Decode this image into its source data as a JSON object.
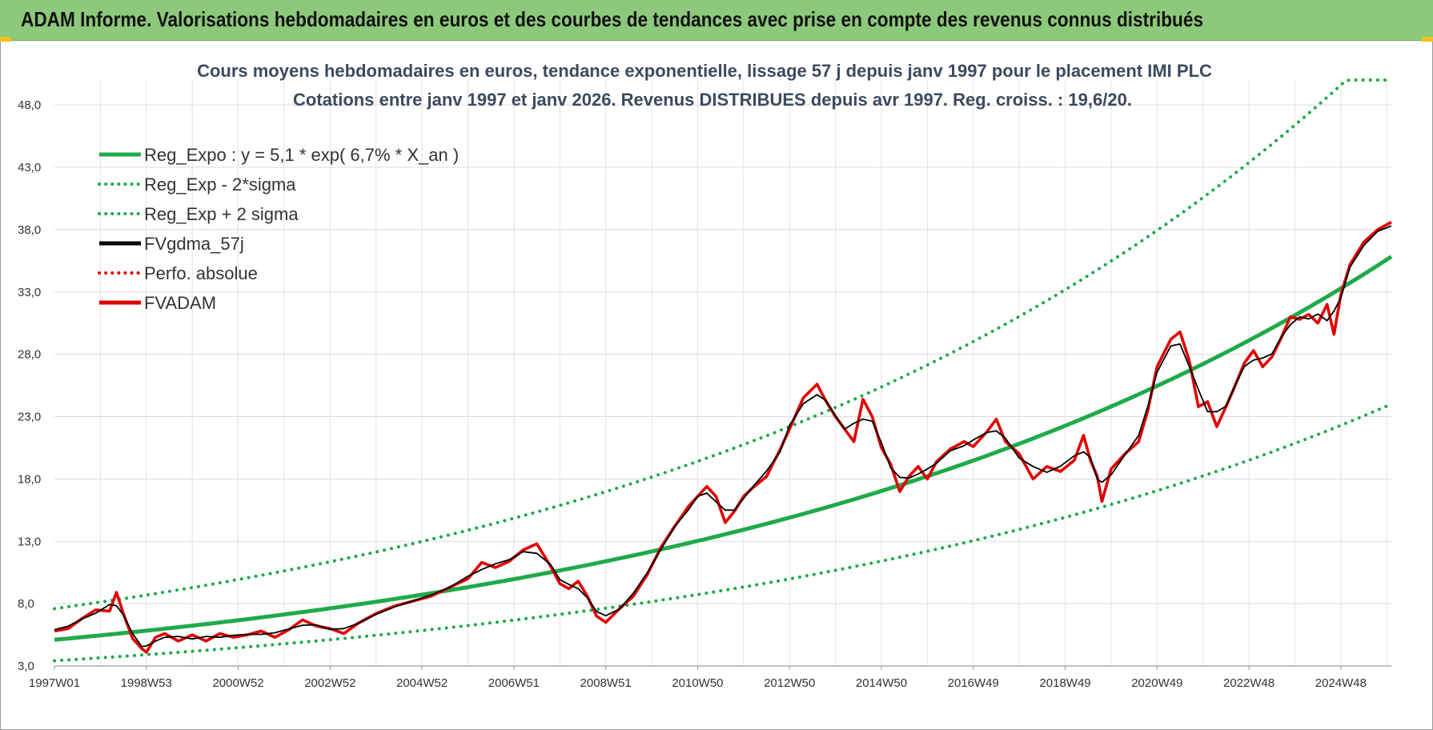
{
  "banner": {
    "title": "ADAM Informe. Valorisations hebdomadaires en euros et des courbes de tendances avec prise en compte des revenus connus distribués"
  },
  "chart_data": {
    "type": "line",
    "title_line1": "Cours moyens hebdomadaires en euros, tendance exponentielle, lissage 57 j depuis janv 1997  pour le placement IMI PLC",
    "title_line2": "Cotations entre janv 1997 et janv 2026. Revenus DISTRIBUES depuis avr 1997.  Reg. croiss. : 19,6/20.",
    "ylim": [
      3,
      50
    ],
    "yticks": [
      "3,0",
      "8,0",
      "13,0",
      "18,0",
      "23,0",
      "28,0",
      "33,0",
      "38,0",
      "43,0",
      "48,0"
    ],
    "ytick_values": [
      3,
      8,
      13,
      18,
      23,
      28,
      33,
      38,
      43,
      48
    ],
    "xticks": [
      "1997W01",
      "1998W53",
      "2000W52",
      "2002W52",
      "2004W52",
      "2006W51",
      "2008W51",
      "2010W50",
      "2012W50",
      "2014W50",
      "2016W49",
      "2018W49",
      "2020W49",
      "2022W48",
      "2024W48"
    ],
    "xtick_years": [
      1997.0,
      1999.0,
      2001.0,
      2003.0,
      2005.0,
      2007.0,
      2009.0,
      2011.0,
      2013.0,
      2015.0,
      2017.0,
      2019.0,
      2021.0,
      2023.0,
      2025.0
    ],
    "x_range_years": [
      1997.0,
      2026.1
    ],
    "grid": true,
    "legend_position": "top-left",
    "series": [
      {
        "name": "Reg_Expo : y = 5,1 * exp( 6,7% *  X_an )",
        "color": "#1faa4a",
        "style": "solid",
        "formula": {
          "a": 5.1,
          "r": 0.067,
          "factor": 1.0
        }
      },
      {
        "name": "Reg_Exp - 2*sigma",
        "color": "#1faa4a",
        "style": "dotted",
        "formula": {
          "a": 5.1,
          "r": 0.067,
          "factor": 0.67
        }
      },
      {
        "name": "Reg_Exp + 2 sigma",
        "color": "#1faa4a",
        "style": "dotted",
        "formula": {
          "a": 5.1,
          "r": 0.067,
          "factor": 1.49
        }
      },
      {
        "name": "FVgdma_57j",
        "color": "#000000",
        "style": "solid"
      },
      {
        "name": "Perfo. absolue",
        "color": "#e00000",
        "style": "dotted"
      },
      {
        "name": "FVADAM",
        "color": "#e00000",
        "style": "solid",
        "points": [
          [
            1997.0,
            5.8
          ],
          [
            1997.3,
            6.0
          ],
          [
            1997.6,
            6.8
          ],
          [
            1997.9,
            7.5
          ],
          [
            1998.2,
            7.4
          ],
          [
            1998.35,
            8.9
          ],
          [
            1998.5,
            7.2
          ],
          [
            1998.7,
            5.2
          ],
          [
            1998.9,
            4.4
          ],
          [
            1999.0,
            4.1
          ],
          [
            1999.2,
            5.3
          ],
          [
            1999.4,
            5.6
          ],
          [
            1999.7,
            5.0
          ],
          [
            2000.0,
            5.5
          ],
          [
            2000.3,
            5.0
          ],
          [
            2000.6,
            5.6
          ],
          [
            2000.9,
            5.3
          ],
          [
            2001.2,
            5.5
          ],
          [
            2001.5,
            5.8
          ],
          [
            2001.8,
            5.3
          ],
          [
            2002.1,
            5.9
          ],
          [
            2002.4,
            6.7
          ],
          [
            2002.7,
            6.2
          ],
          [
            2003.0,
            6.0
          ],
          [
            2003.3,
            5.6
          ],
          [
            2003.6,
            6.4
          ],
          [
            2004.0,
            7.2
          ],
          [
            2004.4,
            7.8
          ],
          [
            2004.8,
            8.2
          ],
          [
            2005.2,
            8.6
          ],
          [
            2005.6,
            9.3
          ],
          [
            2006.0,
            10.0
          ],
          [
            2006.3,
            11.3
          ],
          [
            2006.6,
            10.9
          ],
          [
            2006.9,
            11.4
          ],
          [
            2007.2,
            12.3
          ],
          [
            2007.5,
            12.8
          ],
          [
            2007.8,
            11.0
          ],
          [
            2008.0,
            9.6
          ],
          [
            2008.2,
            9.2
          ],
          [
            2008.4,
            9.8
          ],
          [
            2008.6,
            8.6
          ],
          [
            2008.8,
            7.0
          ],
          [
            2009.0,
            6.5
          ],
          [
            2009.3,
            7.6
          ],
          [
            2009.6,
            8.6
          ],
          [
            2009.9,
            10.3
          ],
          [
            2010.2,
            12.5
          ],
          [
            2010.5,
            14.2
          ],
          [
            2010.8,
            15.8
          ],
          [
            2011.0,
            16.6
          ],
          [
            2011.2,
            17.4
          ],
          [
            2011.4,
            16.6
          ],
          [
            2011.6,
            14.5
          ],
          [
            2011.8,
            15.4
          ],
          [
            2012.0,
            16.6
          ],
          [
            2012.2,
            17.3
          ],
          [
            2012.5,
            18.2
          ],
          [
            2012.8,
            20.4
          ],
          [
            2013.0,
            22.0
          ],
          [
            2013.3,
            24.5
          ],
          [
            2013.6,
            25.6
          ],
          [
            2013.8,
            24.2
          ],
          [
            2014.0,
            23.0
          ],
          [
            2014.2,
            22.0
          ],
          [
            2014.4,
            21.0
          ],
          [
            2014.6,
            24.4
          ],
          [
            2014.8,
            23.0
          ],
          [
            2015.0,
            20.5
          ],
          [
            2015.2,
            19.2
          ],
          [
            2015.4,
            17.0
          ],
          [
            2015.6,
            18.2
          ],
          [
            2015.8,
            19.0
          ],
          [
            2016.0,
            18.0
          ],
          [
            2016.2,
            19.4
          ],
          [
            2016.5,
            20.4
          ],
          [
            2016.8,
            21.0
          ],
          [
            2017.0,
            20.6
          ],
          [
            2017.3,
            21.8
          ],
          [
            2017.5,
            22.8
          ],
          [
            2017.7,
            21.0
          ],
          [
            2018.0,
            20.0
          ],
          [
            2018.3,
            18.0
          ],
          [
            2018.6,
            19.0
          ],
          [
            2018.9,
            18.6
          ],
          [
            2019.2,
            19.5
          ],
          [
            2019.4,
            21.5
          ],
          [
            2019.55,
            19.5
          ],
          [
            2019.7,
            18.2
          ],
          [
            2019.8,
            16.2
          ],
          [
            2020.0,
            18.8
          ],
          [
            2020.3,
            20.0
          ],
          [
            2020.6,
            21.0
          ],
          [
            2020.8,
            23.5
          ],
          [
            2021.0,
            27.0
          ],
          [
            2021.3,
            29.2
          ],
          [
            2021.5,
            29.8
          ],
          [
            2021.7,
            27.5
          ],
          [
            2021.9,
            23.8
          ],
          [
            2022.1,
            24.2
          ],
          [
            2022.3,
            22.2
          ],
          [
            2022.5,
            23.8
          ],
          [
            2022.7,
            25.5
          ],
          [
            2022.9,
            27.3
          ],
          [
            2023.1,
            28.3
          ],
          [
            2023.3,
            27.0
          ],
          [
            2023.5,
            27.8
          ],
          [
            2023.7,
            29.3
          ],
          [
            2023.9,
            31.0
          ],
          [
            2024.1,
            30.8
          ],
          [
            2024.3,
            31.2
          ],
          [
            2024.5,
            30.5
          ],
          [
            2024.7,
            32.0
          ],
          [
            2024.85,
            29.6
          ],
          [
            2025.0,
            32.8
          ],
          [
            2025.2,
            35.2
          ],
          [
            2025.5,
            37.0
          ],
          [
            2025.8,
            38.0
          ],
          [
            2026.1,
            38.6
          ]
        ]
      }
    ]
  }
}
